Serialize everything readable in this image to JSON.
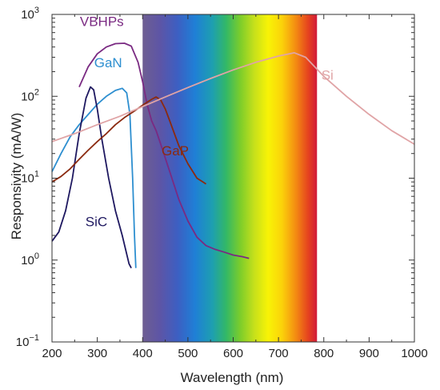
{
  "chart_data": {
    "type": "line",
    "xlabel": "Wavelength (nm)",
    "ylabel": "Responsivity (mA/W)",
    "xlim": [
      200,
      1000
    ],
    "ylim": [
      0.1,
      1000
    ],
    "yscale": "log",
    "grid": false,
    "x_ticks": [
      200,
      300,
      400,
      500,
      600,
      700,
      800,
      900,
      1000
    ],
    "y_ticks": [
      {
        "value": 0.1,
        "base": "10",
        "exp": "−1"
      },
      {
        "value": 1,
        "base": "10",
        "exp": "0"
      },
      {
        "value": 10,
        "base": "10",
        "exp": "1"
      },
      {
        "value": 100,
        "base": "10",
        "exp": "2"
      },
      {
        "value": 1000,
        "base": "10",
        "exp": "3"
      }
    ],
    "visible_band": {
      "x_start": 400,
      "x_end": 785
    },
    "series": [
      {
        "name": "VBHPs",
        "color": "#7a2a82",
        "label_at": [
          310,
          720
        ],
        "points": [
          [
            260,
            130
          ],
          [
            280,
            230
          ],
          [
            300,
            330
          ],
          [
            320,
            400
          ],
          [
            340,
            440
          ],
          [
            360,
            445
          ],
          [
            375,
            410
          ],
          [
            390,
            260
          ],
          [
            400,
            150
          ],
          [
            410,
            80
          ],
          [
            420,
            50
          ],
          [
            430,
            38
          ],
          [
            440,
            26
          ],
          [
            460,
            12
          ],
          [
            480,
            5.5
          ],
          [
            500,
            3
          ],
          [
            520,
            1.9
          ],
          [
            540,
            1.5
          ],
          [
            560,
            1.35
          ],
          [
            580,
            1.25
          ],
          [
            600,
            1.15
          ],
          [
            620,
            1.1
          ],
          [
            635,
            1.05
          ]
        ]
      },
      {
        "name": "GaN",
        "color": "#2e8fd0",
        "label_at": [
          324,
          227
        ],
        "points": [
          [
            200,
            12
          ],
          [
            220,
            20
          ],
          [
            240,
            32
          ],
          [
            260,
            45
          ],
          [
            280,
            60
          ],
          [
            300,
            80
          ],
          [
            320,
            100
          ],
          [
            340,
            118
          ],
          [
            355,
            125
          ],
          [
            365,
            110
          ],
          [
            372,
            60
          ],
          [
            378,
            10
          ],
          [
            382,
            2
          ],
          [
            385,
            0.8
          ]
        ]
      },
      {
        "name": "SiC",
        "color": "#1e1860",
        "label_at": [
          298,
          2.6
        ],
        "points": [
          [
            200,
            1.7
          ],
          [
            215,
            2.2
          ],
          [
            230,
            4
          ],
          [
            245,
            10
          ],
          [
            260,
            35
          ],
          [
            275,
            95
          ],
          [
            285,
            130
          ],
          [
            292,
            120
          ],
          [
            300,
            70
          ],
          [
            310,
            30
          ],
          [
            325,
            10
          ],
          [
            340,
            4
          ],
          [
            355,
            2
          ],
          [
            370,
            0.9
          ],
          [
            375,
            0.8
          ]
        ]
      },
      {
        "name": "GaP",
        "color": "#8b2a10",
        "label_at": [
          472,
          19
        ],
        "points": [
          [
            200,
            9
          ],
          [
            220,
            10.5
          ],
          [
            240,
            13
          ],
          [
            260,
            17
          ],
          [
            280,
            22
          ],
          [
            300,
            28
          ],
          [
            320,
            35
          ],
          [
            340,
            45
          ],
          [
            360,
            55
          ],
          [
            380,
            65
          ],
          [
            400,
            78
          ],
          [
            420,
            92
          ],
          [
            430,
            98
          ],
          [
            440,
            90
          ],
          [
            450,
            70
          ],
          [
            460,
            50
          ],
          [
            480,
            25
          ],
          [
            500,
            15
          ],
          [
            520,
            10
          ],
          [
            540,
            8.5
          ]
        ]
      },
      {
        "name": "Si",
        "color": "#e0a4a6",
        "label_at": [
          808,
          160
        ],
        "points": [
          [
            200,
            28
          ],
          [
            250,
            35
          ],
          [
            300,
            45
          ],
          [
            350,
            57
          ],
          [
            400,
            75
          ],
          [
            450,
            98
          ],
          [
            500,
            128
          ],
          [
            550,
            165
          ],
          [
            600,
            210
          ],
          [
            650,
            260
          ],
          [
            700,
            310
          ],
          [
            735,
            340
          ],
          [
            760,
            300
          ],
          [
            800,
            175
          ],
          [
            850,
            100
          ],
          [
            900,
            60
          ],
          [
            950,
            38
          ],
          [
            1000,
            26
          ]
        ]
      }
    ]
  }
}
